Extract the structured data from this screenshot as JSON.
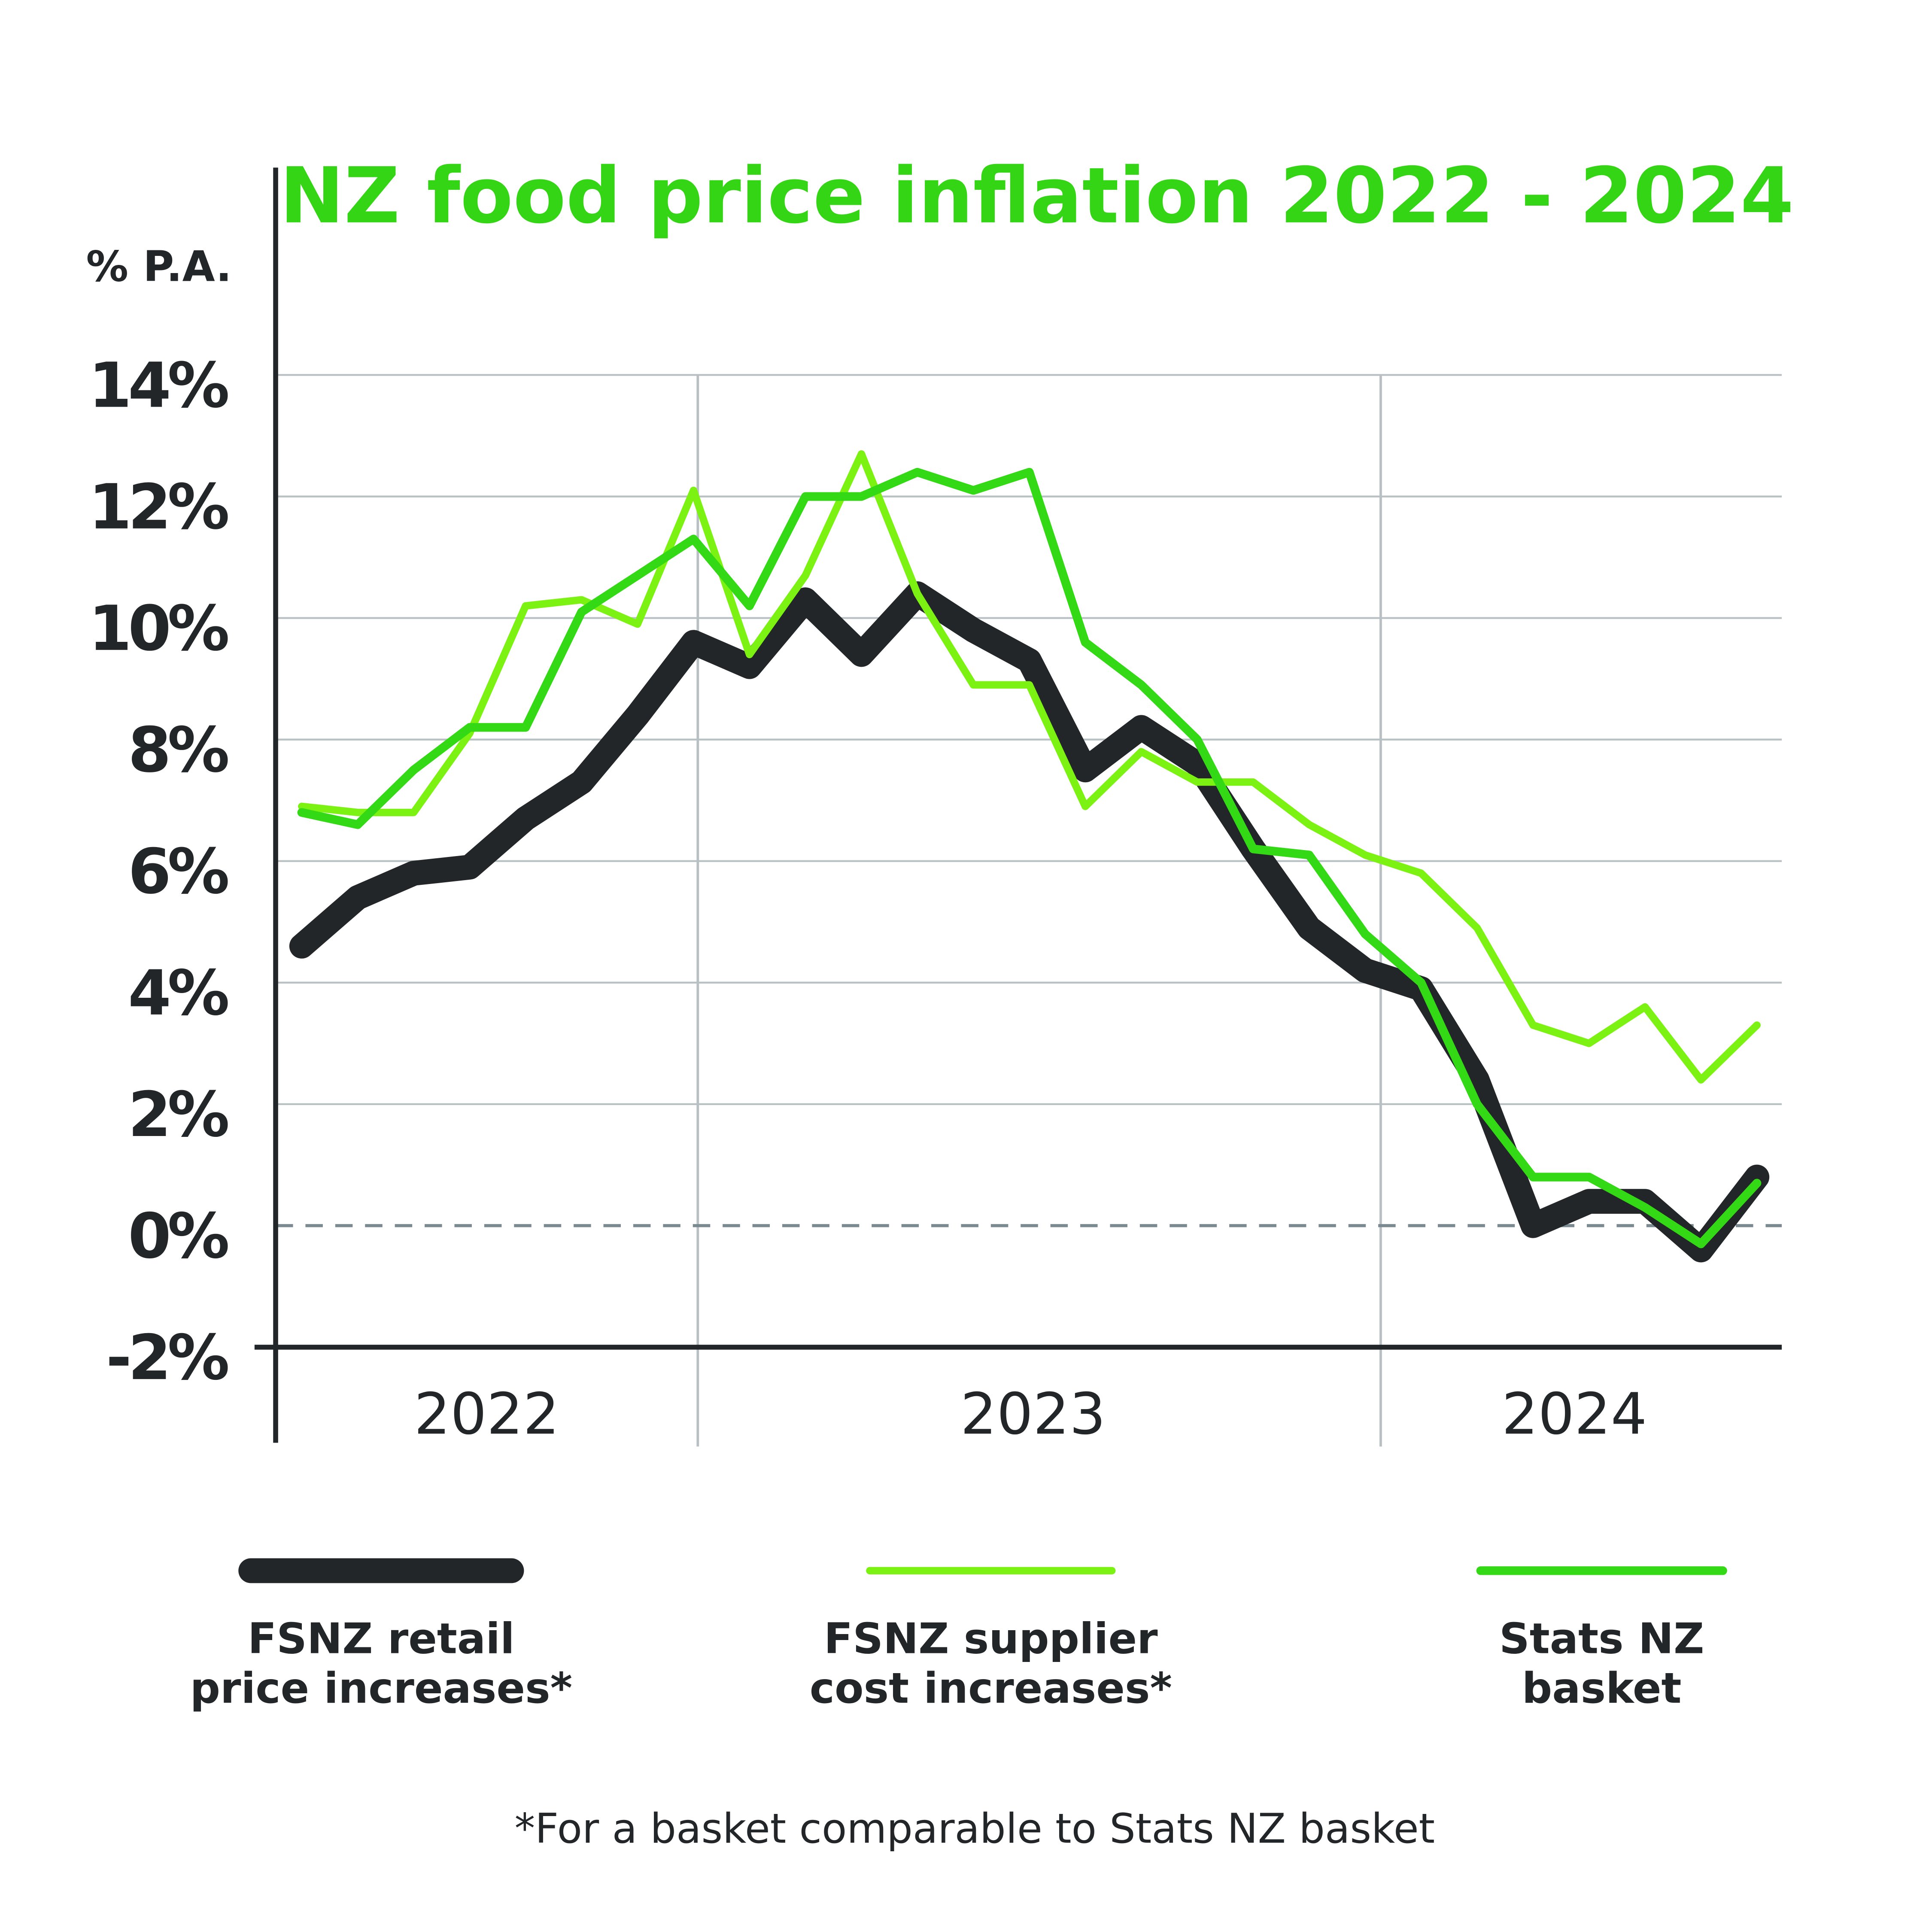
{
  "chart_data": {
    "type": "line",
    "title": "NZ food price inflation 2022 - 2024",
    "y_label": "% P.A.",
    "footnote": "*For a basket comparable to Stats NZ basket",
    "year_labels": [
      "2022",
      "2023",
      "2024"
    ],
    "categories": [
      null,
      null,
      null,
      null,
      null,
      null,
      null,
      null,
      null,
      null,
      null,
      null,
      null,
      null,
      null,
      null,
      null,
      null,
      null,
      null,
      null,
      null,
      null,
      null,
      null,
      null,
      null
    ],
    "ylim": [
      -2,
      14
    ],
    "yticks": [
      {
        "value": -2,
        "label": "-2%"
      },
      {
        "value": 0,
        "label": "0%"
      },
      {
        "value": 2,
        "label": "2%"
      },
      {
        "value": 4,
        "label": "4%"
      },
      {
        "value": 6,
        "label": "6%"
      },
      {
        "value": 8,
        "label": "8%"
      },
      {
        "value": 10,
        "label": "10%"
      },
      {
        "value": 12,
        "label": "12%"
      },
      {
        "value": 14,
        "label": "14%"
      }
    ],
    "grid": true,
    "series": [
      {
        "name": "FSNZ retail price increases*",
        "color": "#222629",
        "values": [
          4.6,
          5.4,
          5.8,
          5.9,
          6.7,
          7.3,
          8.4,
          9.6,
          9.2,
          10.3,
          9.4,
          10.4,
          9.8,
          9.3,
          7.5,
          8.2,
          7.6,
          6.2,
          4.9,
          4.2,
          3.9,
          2.4,
          0.0,
          0.4,
          0.4,
          -0.4,
          0.8
        ]
      },
      {
        "name": "FSNZ supplier cost increases*",
        "color": "#7cf212",
        "values": [
          6.9,
          6.8,
          6.8,
          8.1,
          10.2,
          10.3,
          9.9,
          12.1,
          9.4,
          10.7,
          12.7,
          10.4,
          8.9,
          8.9,
          6.9,
          7.8,
          7.3,
          7.3,
          6.6,
          6.1,
          5.8,
          4.9,
          3.3,
          3.0,
          3.6,
          2.4,
          3.3
        ]
      },
      {
        "name": "Stats NZ basket",
        "color": "#33d914",
        "values": [
          6.8,
          6.6,
          7.5,
          8.2,
          8.2,
          10.1,
          10.7,
          11.3,
          10.2,
          12.0,
          12.0,
          12.4,
          12.1,
          12.4,
          9.6,
          8.9,
          8.0,
          6.2,
          6.1,
          4.8,
          4.0,
          2.0,
          0.8,
          0.8,
          0.3,
          -0.3,
          0.7
        ]
      }
    ]
  }
}
